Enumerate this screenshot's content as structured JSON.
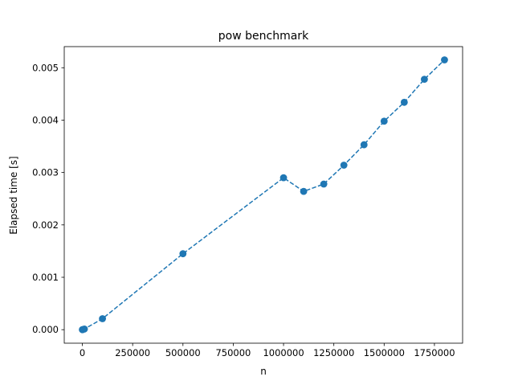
{
  "chart_data": {
    "type": "line",
    "title": "pow benchmark",
    "xlabel": "n",
    "ylabel": "Elapsed time [s]",
    "xlim": [
      -90000,
      1890000
    ],
    "ylim": [
      -0.000258,
      0.005403
    ],
    "xticks": [
      0,
      250000,
      500000,
      750000,
      1000000,
      1250000,
      1500000,
      1750000
    ],
    "xtick_labels": [
      "0",
      "250000",
      "500000",
      "750000",
      "1000000",
      "1250000",
      "1500000",
      "1750000"
    ],
    "yticks": [
      0,
      0.001,
      0.002,
      0.003,
      0.004,
      0.005
    ],
    "ytick_labels": [
      "0.000",
      "0.001",
      "0.002",
      "0.003",
      "0.004",
      "0.005"
    ],
    "grid": false,
    "line_style": "dashed",
    "marker": "circle",
    "series": [
      {
        "color": "#1f77b4",
        "x": [
          100,
          1000,
          10000,
          100000,
          500000,
          1000000,
          1100000,
          1200000,
          1300000,
          1400000,
          1500000,
          1600000,
          1700000,
          1800000
        ],
        "y": [
          0.0,
          1e-06,
          1.2e-05,
          0.00021,
          0.00145,
          0.0029,
          0.00264,
          0.00278,
          0.00314,
          0.00353,
          0.00398,
          0.00434,
          0.00478,
          0.00515
        ]
      }
    ]
  }
}
